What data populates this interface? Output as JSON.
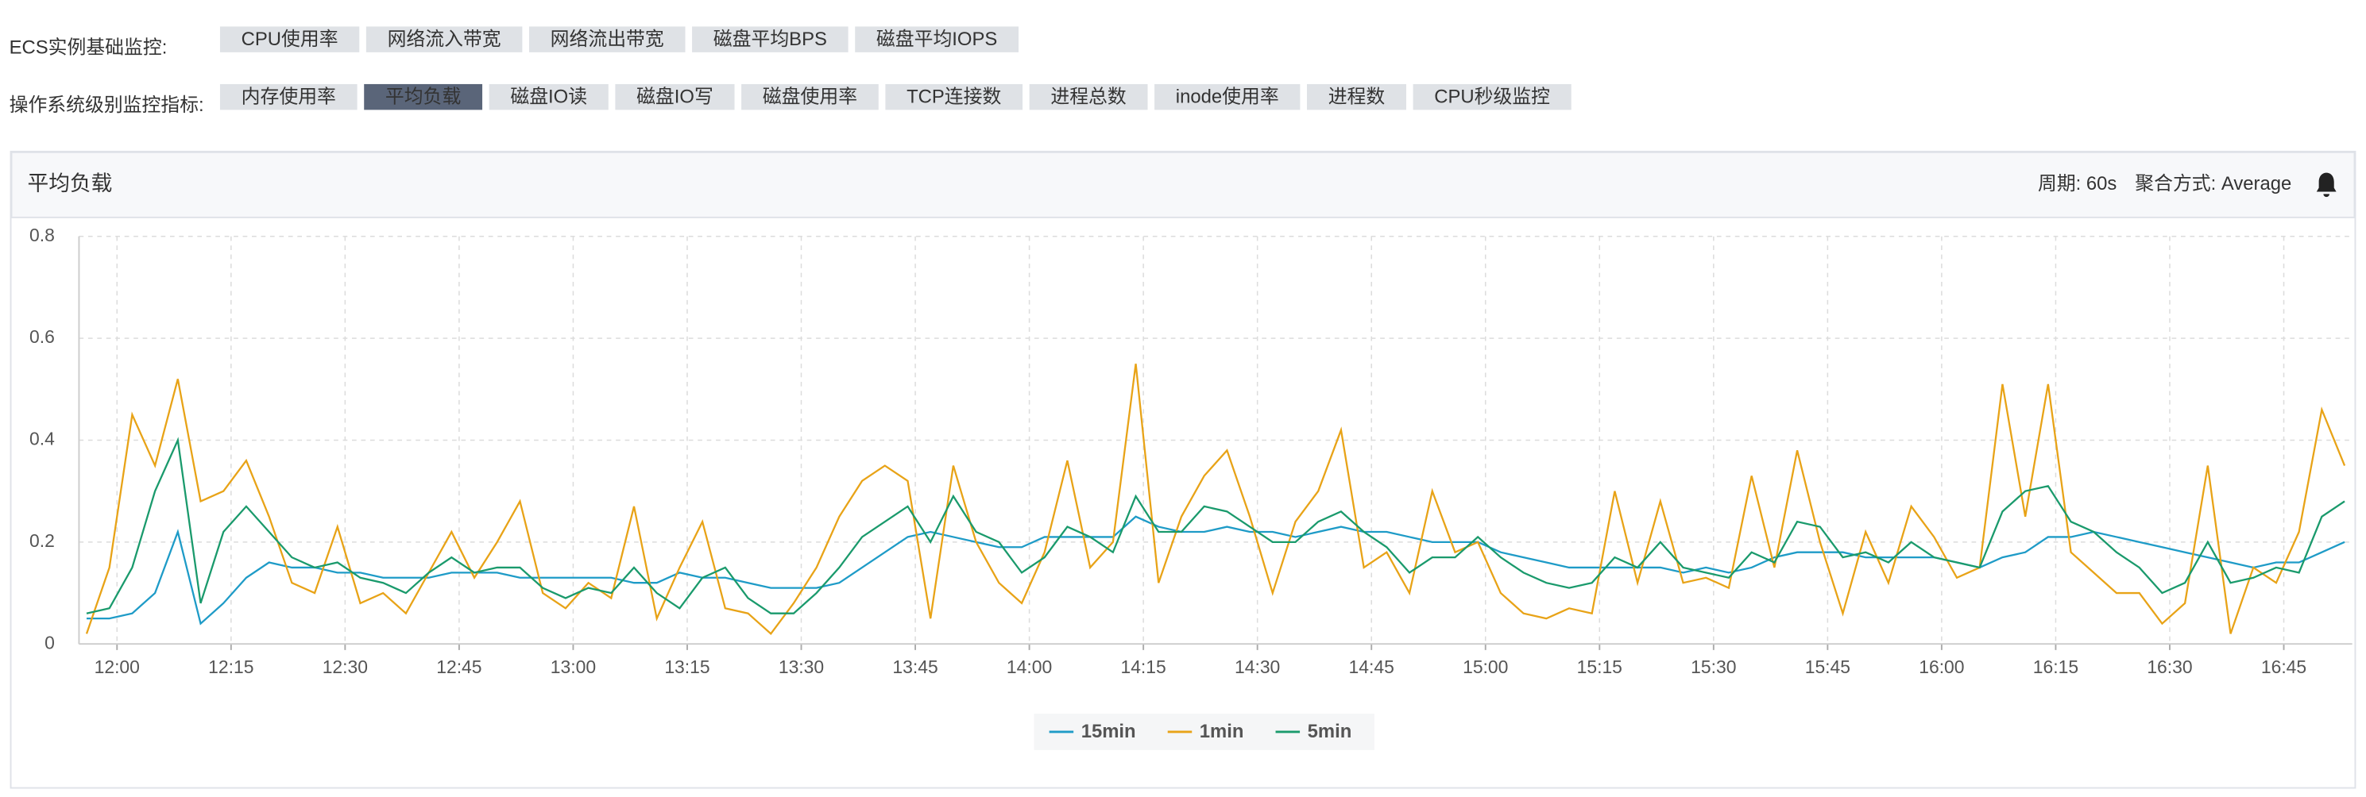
{
  "toolbar": {
    "rows": [
      {
        "label": "ECS实例基础监控:",
        "tabs": [
          "CPU使用率",
          "网络流入带宽",
          "网络流出带宽",
          "磁盘平均BPS",
          "磁盘平均IOPS"
        ]
      },
      {
        "label": "操作系统级别监控指标:",
        "tabs": [
          "内存使用率",
          "平均负载",
          "磁盘IO读",
          "磁盘IO写",
          "磁盘使用率",
          "TCP连接数",
          "进程总数",
          "inode使用率",
          "进程数",
          "CPU秒级监控"
        ],
        "active": 1
      }
    ]
  },
  "panel": {
    "title": "平均负载",
    "period": "周期: 60s",
    "aggregation": "聚合方式: Average"
  },
  "chart_data": {
    "type": "line",
    "x": [
      "11:56",
      "11:59",
      "12:02",
      "12:05",
      "12:08",
      "12:11",
      "12:14",
      "12:17",
      "12:20",
      "12:23",
      "12:26",
      "12:29",
      "12:32",
      "12:35",
      "12:38",
      "12:41",
      "12:44",
      "12:47",
      "12:50",
      "12:53",
      "12:56",
      "12:59",
      "13:02",
      "13:05",
      "13:08",
      "13:11",
      "13:14",
      "13:17",
      "13:20",
      "13:23",
      "13:26",
      "13:29",
      "13:32",
      "13:35",
      "13:38",
      "13:41",
      "13:44",
      "13:47",
      "13:50",
      "13:53",
      "13:56",
      "13:59",
      "14:02",
      "14:05",
      "14:08",
      "14:11",
      "14:14",
      "14:17",
      "14:20",
      "14:23",
      "14:26",
      "14:29",
      "14:32",
      "14:35",
      "14:38",
      "14:41",
      "14:44",
      "14:47",
      "14:50",
      "14:53",
      "14:56",
      "14:59",
      "15:02",
      "15:05",
      "15:08",
      "15:11",
      "15:14",
      "15:17",
      "15:20",
      "15:23",
      "15:26",
      "15:29",
      "15:32",
      "15:35",
      "15:38",
      "15:41",
      "15:44",
      "15:47",
      "15:50",
      "15:53",
      "15:56",
      "15:59",
      "16:02",
      "16:05",
      "16:08",
      "16:11",
      "16:14",
      "16:17",
      "16:20",
      "16:23",
      "16:26",
      "16:29",
      "16:32",
      "16:35",
      "16:38",
      "16:41",
      "16:44",
      "16:47",
      "16:50",
      "16:53"
    ],
    "series": [
      {
        "name": "15min",
        "color": "#1e9bc7",
        "values": [
          0.05,
          0.05,
          0.06,
          0.1,
          0.22,
          0.04,
          0.08,
          0.13,
          0.16,
          0.15,
          0.15,
          0.14,
          0.14,
          0.13,
          0.13,
          0.13,
          0.14,
          0.14,
          0.14,
          0.13,
          0.13,
          0.13,
          0.13,
          0.13,
          0.12,
          0.12,
          0.14,
          0.13,
          0.13,
          0.12,
          0.11,
          0.11,
          0.11,
          0.12,
          0.15,
          0.18,
          0.21,
          0.22,
          0.21,
          0.2,
          0.19,
          0.19,
          0.21,
          0.21,
          0.21,
          0.21,
          0.25,
          0.23,
          0.22,
          0.22,
          0.23,
          0.22,
          0.22,
          0.21,
          0.22,
          0.23,
          0.22,
          0.22,
          0.21,
          0.2,
          0.2,
          0.2,
          0.18,
          0.17,
          0.16,
          0.15,
          0.15,
          0.15,
          0.15,
          0.15,
          0.14,
          0.15,
          0.14,
          0.15,
          0.17,
          0.18,
          0.18,
          0.18,
          0.17,
          0.17,
          0.17,
          0.17,
          0.16,
          0.15,
          0.17,
          0.18,
          0.21,
          0.21,
          0.22,
          0.21,
          0.2,
          0.19,
          0.18,
          0.17,
          0.16,
          0.15,
          0.16,
          0.16,
          0.18,
          0.2
        ]
      },
      {
        "name": "1min",
        "color": "#e8a317",
        "values": [
          0.02,
          0.15,
          0.45,
          0.35,
          0.52,
          0.28,
          0.3,
          0.36,
          0.25,
          0.12,
          0.1,
          0.23,
          0.08,
          0.1,
          0.06,
          0.14,
          0.22,
          0.13,
          0.2,
          0.28,
          0.1,
          0.07,
          0.12,
          0.09,
          0.27,
          0.05,
          0.15,
          0.24,
          0.07,
          0.06,
          0.02,
          0.08,
          0.15,
          0.25,
          0.32,
          0.35,
          0.32,
          0.05,
          0.35,
          0.2,
          0.12,
          0.08,
          0.18,
          0.36,
          0.15,
          0.2,
          0.55,
          0.12,
          0.25,
          0.33,
          0.38,
          0.25,
          0.1,
          0.24,
          0.3,
          0.42,
          0.15,
          0.18,
          0.1,
          0.3,
          0.18,
          0.2,
          0.1,
          0.06,
          0.05,
          0.07,
          0.06,
          0.3,
          0.12,
          0.28,
          0.12,
          0.13,
          0.11,
          0.33,
          0.15,
          0.38,
          0.2,
          0.06,
          0.22,
          0.12,
          0.27,
          0.21,
          0.13,
          0.15,
          0.51,
          0.25,
          0.51,
          0.18,
          0.14,
          0.1,
          0.1,
          0.04,
          0.08,
          0.35,
          0.02,
          0.15,
          0.12,
          0.22,
          0.46,
          0.35
        ]
      },
      {
        "name": "5min",
        "color": "#1a9a6c",
        "values": [
          0.06,
          0.07,
          0.15,
          0.3,
          0.4,
          0.08,
          0.22,
          0.27,
          0.22,
          0.17,
          0.15,
          0.16,
          0.13,
          0.12,
          0.1,
          0.14,
          0.17,
          0.14,
          0.15,
          0.15,
          0.11,
          0.09,
          0.11,
          0.1,
          0.15,
          0.1,
          0.07,
          0.13,
          0.15,
          0.09,
          0.06,
          0.06,
          0.1,
          0.15,
          0.21,
          0.24,
          0.27,
          0.2,
          0.29,
          0.22,
          0.2,
          0.14,
          0.17,
          0.23,
          0.21,
          0.18,
          0.29,
          0.22,
          0.22,
          0.27,
          0.26,
          0.23,
          0.2,
          0.2,
          0.24,
          0.26,
          0.22,
          0.19,
          0.14,
          0.17,
          0.17,
          0.21,
          0.17,
          0.14,
          0.12,
          0.11,
          0.12,
          0.17,
          0.15,
          0.2,
          0.15,
          0.14,
          0.13,
          0.18,
          0.16,
          0.24,
          0.23,
          0.17,
          0.18,
          0.16,
          0.2,
          0.17,
          0.16,
          0.15,
          0.26,
          0.3,
          0.31,
          0.24,
          0.22,
          0.18,
          0.15,
          0.1,
          0.12,
          0.2,
          0.12,
          0.13,
          0.15,
          0.14,
          0.25,
          0.28
        ]
      }
    ],
    "xlim": [
      "11:55",
      "16:54"
    ],
    "xticks": [
      "12:00",
      "12:15",
      "12:30",
      "12:45",
      "13:00",
      "13:15",
      "13:30",
      "13:45",
      "14:00",
      "14:15",
      "14:30",
      "14:45",
      "15:00",
      "15:15",
      "15:30",
      "15:45",
      "16:00",
      "16:15",
      "16:30",
      "16:45"
    ],
    "ylim": [
      0,
      0.8
    ],
    "yticks": [
      0,
      0.2,
      0.4,
      0.6,
      0.8
    ],
    "grid": true,
    "legend": "bottom"
  }
}
